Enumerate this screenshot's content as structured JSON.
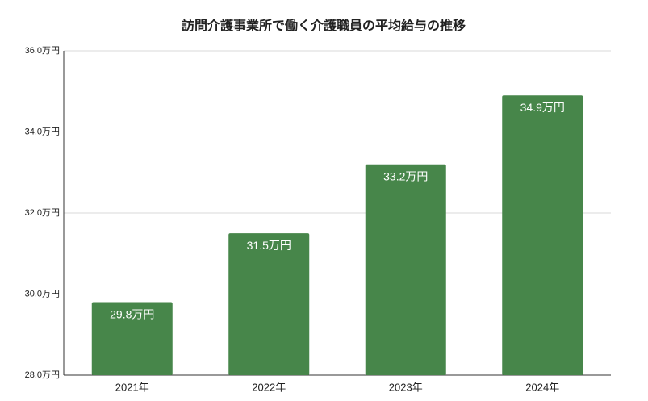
{
  "chart_data": {
    "type": "bar",
    "title": "訪問介護事業所で働く介護職員の平均給与の推移",
    "categories": [
      "2021年",
      "2022年",
      "2023年",
      "2024年"
    ],
    "values": [
      29.8,
      31.5,
      33.2,
      34.9
    ],
    "value_labels": [
      "29.8万円",
      "31.5万円",
      "33.2万円",
      "34.9万円"
    ],
    "color": "#47864a",
    "ylim": [
      28,
      36
    ],
    "yticks": [
      {
        "value": 28,
        "label": "28.0万円"
      },
      {
        "value": 30,
        "label": "30.0万円"
      },
      {
        "value": 32,
        "label": "32.0万円"
      },
      {
        "value": 34,
        "label": "34.0万円"
      },
      {
        "value": 36,
        "label": "36.0万円"
      }
    ],
    "grid": true
  }
}
